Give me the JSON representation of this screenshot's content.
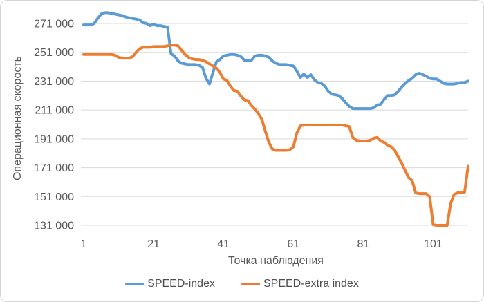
{
  "chart": {
    "y_axis": {
      "title": "Операционная скорость",
      "ticks": [
        {
          "value": 271000,
          "label": "271 000"
        },
        {
          "value": 251000,
          "label": "251 000"
        },
        {
          "value": 231000,
          "label": "231 000"
        },
        {
          "value": 211000,
          "label": "211 000"
        },
        {
          "value": 191000,
          "label": "191 000"
        },
        {
          "value": 171000,
          "label": "171 000"
        },
        {
          "value": 151000,
          "label": "151 000"
        },
        {
          "value": 131000,
          "label": "131 000"
        }
      ]
    },
    "x_axis": {
      "title": "Точка наблюдения",
      "ticks": [
        {
          "value": 1,
          "label": "1"
        },
        {
          "value": 21,
          "label": "21"
        },
        {
          "value": 41,
          "label": "41"
        },
        {
          "value": 61,
          "label": "61"
        },
        {
          "value": 81,
          "label": "81"
        },
        {
          "value": 101,
          "label": "101"
        }
      ]
    },
    "legend": [
      {
        "label": "SPEED-index",
        "color": "#5B9BD5"
      },
      {
        "label": "SPEED-extra index",
        "color": "#ED7D31"
      }
    ],
    "colors": {
      "gridline": "#d9d9d9",
      "tick_text": "#595959"
    }
  },
  "chart_data": {
    "type": "line",
    "title": "",
    "xlabel": "Точка наблюдения",
    "ylabel": "Операционная скорость",
    "x_range": [
      1,
      111
    ],
    "ylim": [
      131000,
      281000
    ],
    "x_ticks": [
      1,
      21,
      41,
      61,
      81,
      101
    ],
    "y_ticks": [
      131000,
      151000,
      171000,
      191000,
      211000,
      231000,
      251000,
      271000
    ],
    "grid": "horizontal",
    "legend_position": "bottom",
    "series": [
      {
        "name": "SPEED-index",
        "color": "#5B9BD5",
        "values": [
          270000,
          270000,
          270000,
          271000,
          274500,
          277500,
          278500,
          278500,
          278000,
          277500,
          277000,
          276500,
          275500,
          275000,
          274500,
          274000,
          273500,
          271500,
          271000,
          269500,
          270500,
          269500,
          269500,
          269000,
          268500,
          250000,
          248500,
          245000,
          243500,
          243000,
          242500,
          242500,
          242500,
          242000,
          240500,
          233000,
          229000,
          237000,
          244500,
          246000,
          248500,
          249000,
          249500,
          249500,
          249000,
          248000,
          245500,
          245000,
          245500,
          248500,
          249000,
          249000,
          248500,
          247500,
          245000,
          243500,
          242500,
          242500,
          242500,
          242000,
          241500,
          238000,
          233500,
          236000,
          233500,
          235500,
          232000,
          230000,
          229500,
          227500,
          224000,
          222000,
          221500,
          221000,
          219000,
          216000,
          213500,
          212000,
          212000,
          212000,
          212000,
          212000,
          212000,
          212500,
          214500,
          215000,
          218500,
          221000,
          221000,
          221500,
          224000,
          227000,
          229500,
          231500,
          233000,
          235500,
          236500,
          235500,
          234500,
          233000,
          232500,
          232500,
          231000,
          229500,
          229000,
          229000,
          229000,
          229500,
          230000,
          230000,
          231000
        ]
      },
      {
        "name": "SPEED-extra index",
        "color": "#ED7D31",
        "values": [
          249500,
          249500,
          249500,
          249500,
          249500,
          249500,
          249500,
          249500,
          249500,
          249000,
          247500,
          247000,
          247000,
          247000,
          248000,
          251000,
          253500,
          254500,
          254500,
          254500,
          255000,
          255000,
          255000,
          255000,
          255500,
          256000,
          256000,
          255500,
          252500,
          249500,
          247500,
          246500,
          246000,
          246000,
          245500,
          244500,
          243000,
          241500,
          240000,
          237000,
          232500,
          231500,
          227500,
          224500,
          224000,
          220500,
          218000,
          217500,
          214000,
          211500,
          208500,
          204500,
          196000,
          188500,
          184000,
          183000,
          183000,
          183000,
          183000,
          183500,
          185500,
          195000,
          200000,
          200500,
          200500,
          200500,
          200500,
          200500,
          200500,
          200500,
          200500,
          200500,
          200500,
          200500,
          200500,
          200000,
          199500,
          192000,
          190000,
          189500,
          189500,
          189500,
          190000,
          191500,
          192000,
          189500,
          188500,
          186500,
          185500,
          183000,
          178500,
          174000,
          169000,
          164000,
          162000,
          153500,
          153000,
          153000,
          153000,
          151000,
          131500,
          131000,
          131000,
          131000,
          131000,
          146000,
          152500,
          153500,
          154000,
          154000,
          172000
        ]
      }
    ]
  }
}
